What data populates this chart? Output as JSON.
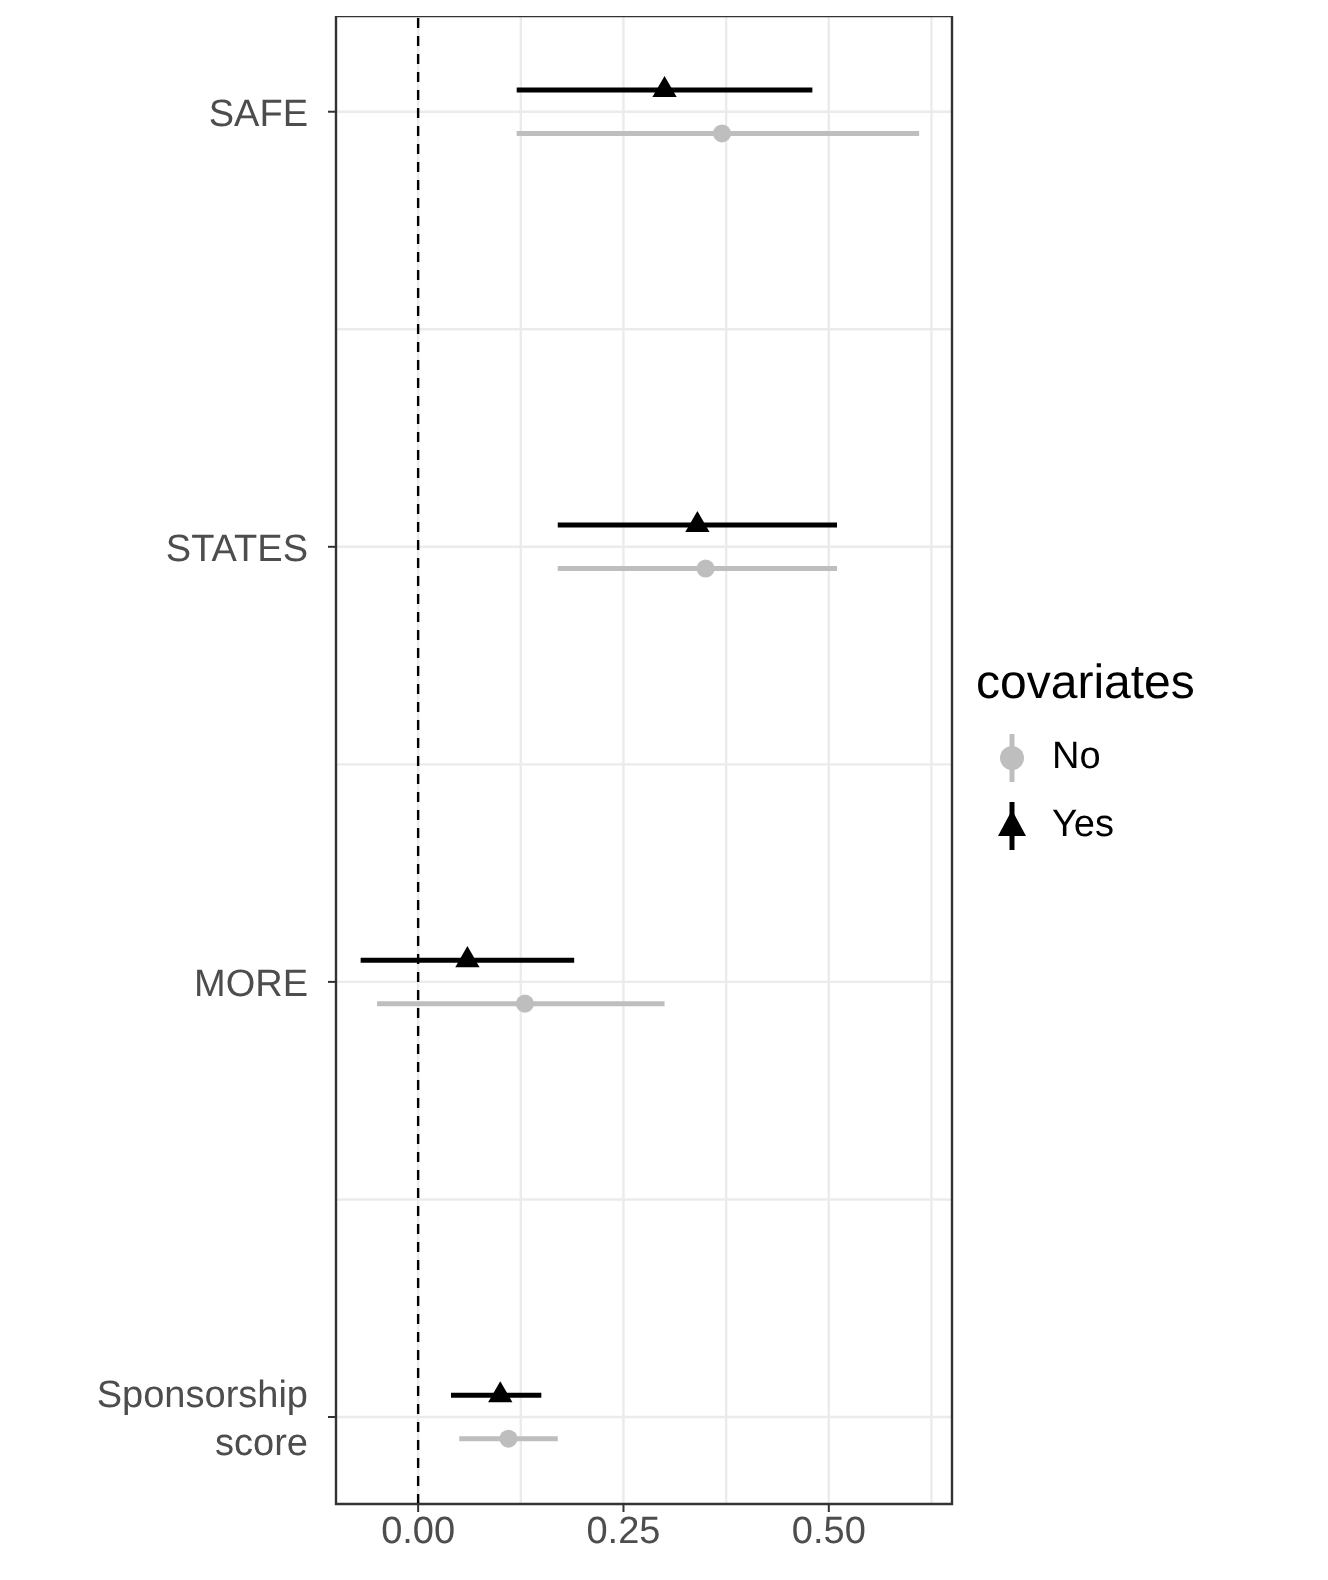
{
  "chart_data": {
    "type": "scatter",
    "orientation": "horizontal",
    "categories": [
      "SAFE",
      "STATES",
      "MORE",
      "Sponsorship score"
    ],
    "series": [
      {
        "name": "No",
        "color": "#bebebe",
        "marker": "circle",
        "values": [
          0.37,
          0.35,
          0.13,
          0.11
        ],
        "errors": [
          [
            0.12,
            0.61
          ],
          [
            0.17,
            0.51
          ],
          [
            -0.05,
            0.3
          ],
          [
            0.05,
            0.17
          ]
        ]
      },
      {
        "name": "Yes",
        "color": "#000000",
        "marker": "triangle",
        "values": [
          0.3,
          0.34,
          0.06,
          0.1
        ],
        "errors": [
          [
            0.12,
            0.48
          ],
          [
            0.17,
            0.51
          ],
          [
            -0.07,
            0.19
          ],
          [
            0.04,
            0.15
          ]
        ]
      }
    ],
    "xlim": [
      -0.1,
      0.65
    ],
    "xticks": [
      {
        "value": 0,
        "label": "0.00"
      },
      {
        "value": 0.25,
        "label": "0.25"
      },
      {
        "value": 0.5,
        "label": "0.50"
      }
    ],
    "ref_lines": [
      {
        "axis": "x",
        "value": 0,
        "line_style": "dashed",
        "color": "#000000"
      }
    ],
    "grid": true,
    "legend": "right",
    "legend_title": "covariates"
  }
}
